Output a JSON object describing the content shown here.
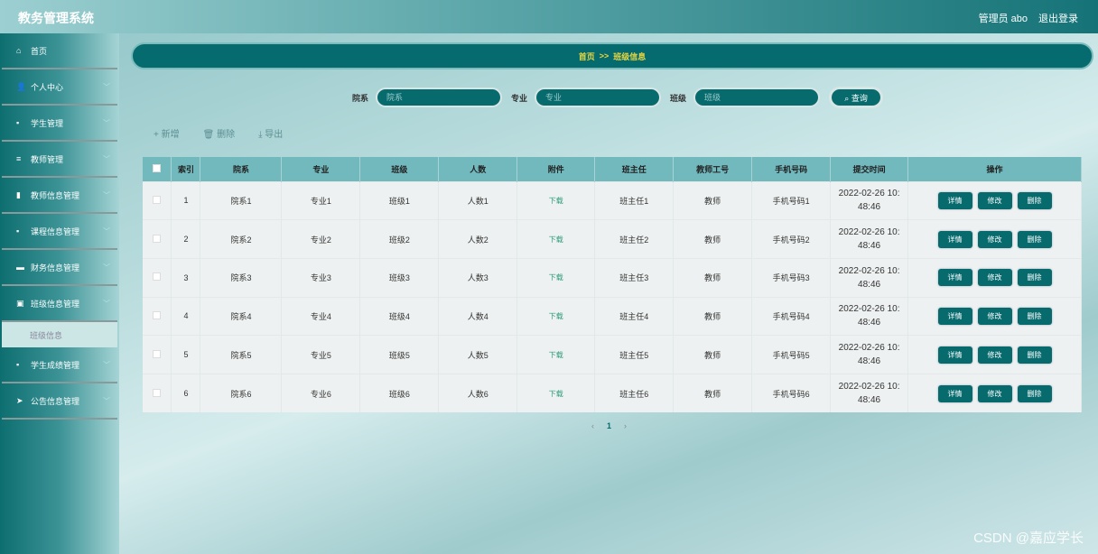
{
  "header": {
    "title": "教务管理系统",
    "user": "管理员 abo",
    "logout": "退出登录"
  },
  "sidebar": {
    "items": [
      {
        "label": "首页",
        "icon": "home-icon",
        "glyph": "⌂",
        "chev": false
      },
      {
        "label": "个人中心",
        "icon": "user-icon",
        "glyph": "👤",
        "chev": true
      },
      {
        "label": "学生管理",
        "icon": "grid-icon",
        "glyph": "▪",
        "chev": true
      },
      {
        "label": "教师管理",
        "icon": "list-icon",
        "glyph": "≡",
        "chev": true
      },
      {
        "label": "教师信息管理",
        "icon": "bar-chart-icon",
        "glyph": "▮",
        "chev": true
      },
      {
        "label": "课程信息管理",
        "icon": "grid-icon",
        "glyph": "▪",
        "chev": true
      },
      {
        "label": "财务信息管理",
        "icon": "monitor-icon",
        "glyph": "▬",
        "chev": true
      },
      {
        "label": "班级信息管理",
        "icon": "clipboard-icon",
        "glyph": "▣",
        "chev": true,
        "sub": "班级信息"
      },
      {
        "label": "学生成绩管理",
        "icon": "grid-icon",
        "glyph": "▪",
        "chev": true
      },
      {
        "label": "公告信息管理",
        "icon": "send-icon",
        "glyph": "➤",
        "chev": true
      }
    ]
  },
  "breadcrumb": {
    "home": "首页",
    "sep": ">>",
    "current": "班级信息"
  },
  "search": {
    "fields": [
      {
        "label": "院系",
        "placeholder": "院系"
      },
      {
        "label": "专业",
        "placeholder": "专业"
      },
      {
        "label": "班级",
        "placeholder": "班级"
      }
    ],
    "button": "查询"
  },
  "toolbar": {
    "add": "+ 新增",
    "delete": "🗑 删除",
    "export": "⤓ 导出"
  },
  "table": {
    "headers": [
      "索引",
      "院系",
      "专业",
      "班级",
      "人数",
      "附件",
      "班主任",
      "教师工号",
      "手机号码",
      "提交时间",
      "操作"
    ],
    "rows": [
      [
        "1",
        "院系1",
        "专业1",
        "班级1",
        "人数1",
        "下载",
        "班主任1",
        "教师",
        "手机号码1",
        "2022-02-26 10:48:46"
      ],
      [
        "2",
        "院系2",
        "专业2",
        "班级2",
        "人数2",
        "下载",
        "班主任2",
        "教师",
        "手机号码2",
        "2022-02-26 10:48:46"
      ],
      [
        "3",
        "院系3",
        "专业3",
        "班级3",
        "人数3",
        "下载",
        "班主任3",
        "教师",
        "手机号码3",
        "2022-02-26 10:48:46"
      ],
      [
        "4",
        "院系4",
        "专业4",
        "班级4",
        "人数4",
        "下载",
        "班主任4",
        "教师",
        "手机号码4",
        "2022-02-26 10:48:46"
      ],
      [
        "5",
        "院系5",
        "专业5",
        "班级5",
        "人数5",
        "下载",
        "班主任5",
        "教师",
        "手机号码5",
        "2022-02-26 10:48:46"
      ],
      [
        "6",
        "院系6",
        "专业6",
        "班级6",
        "人数6",
        "下载",
        "班主任6",
        "教师",
        "手机号码6",
        "2022-02-26 10:48:46"
      ]
    ],
    "actions": [
      "详情",
      "修改",
      "删除"
    ]
  },
  "pagination": {
    "prev": "‹",
    "page": "1",
    "next": "›"
  },
  "watermark": "CSDN @嘉应学长"
}
